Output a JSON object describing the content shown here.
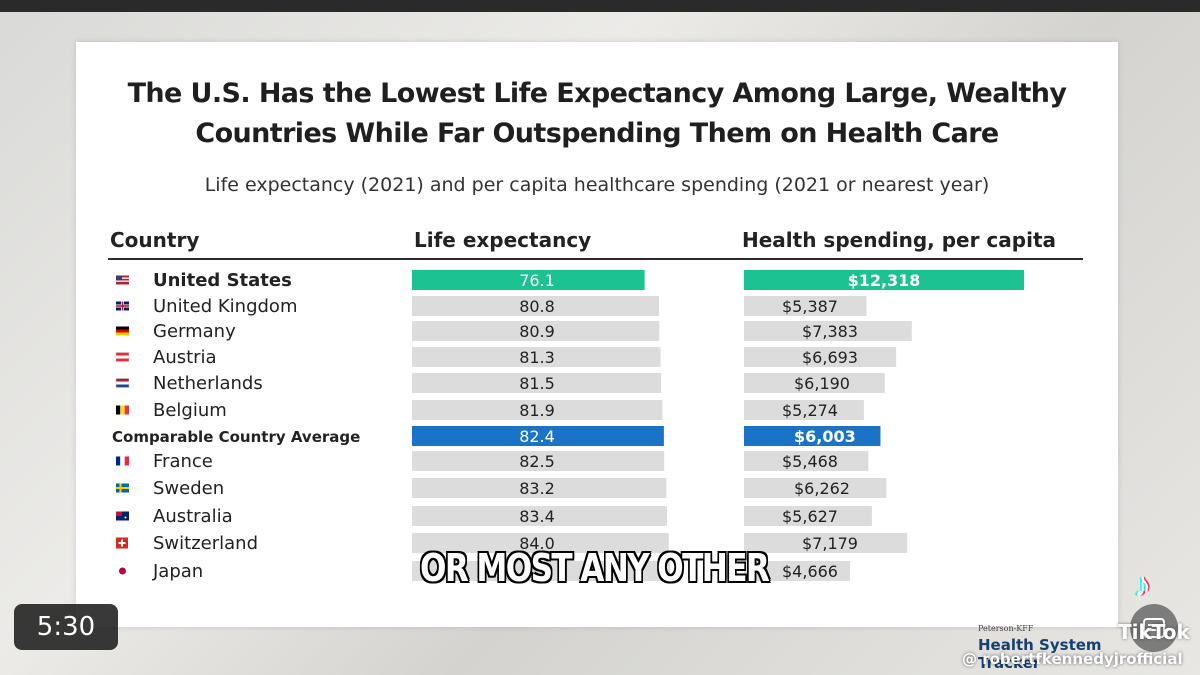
{
  "title_line1": "The U.S. Has the Lowest Life Expectancy Among Large, Wealthy",
  "title_line2": "Countries While Far Outspending Them on Health Care",
  "subtitle": "Life expectancy (2021) and per capita healthcare spending (2021 or nearest year)",
  "columns": {
    "country": "Country",
    "life": "Life expectancy",
    "spending": "Health spending, per capita"
  },
  "colors": {
    "us": "#1dc292",
    "average": "#1a73c6",
    "other": "#dcdcdc"
  },
  "chart_data": {
    "type": "bar",
    "categories": [
      "United States",
      "United Kingdom",
      "Germany",
      "Austria",
      "Netherlands",
      "Belgium",
      "Comparable Country Average",
      "France",
      "Sweden",
      "Australia",
      "Switzerland",
      "Japan"
    ],
    "flags": [
      "flag-us-icon",
      "flag-uk-icon",
      "flag-germany-icon",
      "flag-austria-icon",
      "flag-netherlands-icon",
      "flag-belgium-icon",
      "",
      "flag-france-icon",
      "flag-sweden-icon",
      "flag-australia-icon",
      "flag-switzerland-icon",
      "flag-japan-icon"
    ],
    "series": [
      {
        "name": "Life expectancy",
        "values": [
          76.1,
          80.8,
          80.9,
          81.3,
          81.5,
          81.9,
          82.4,
          82.5,
          83.2,
          83.4,
          84.0,
          84.5
        ],
        "labels": [
          "76.1",
          "80.8",
          "80.9",
          "81.3",
          "81.5",
          "81.9",
          "82.4",
          "82.5",
          "83.2",
          "83.4",
          "84.0",
          ""
        ]
      },
      {
        "name": "Health spending, per capita",
        "values": [
          12318,
          5387,
          7383,
          6693,
          6190,
          5274,
          6003,
          5468,
          6262,
          5627,
          7179,
          4666
        ],
        "labels": [
          "$12,318",
          "$5,387",
          "$7,383",
          "$6,693",
          "$6,190",
          "$5,274",
          "$6,003",
          "$5,468",
          "$6,262",
          "$5,627",
          "$7,179",
          "$4,666"
        ]
      }
    ]
  },
  "caption": "OR MOST ANY OTHER",
  "video_time": "5:30",
  "brand_small": "Peterson-KFF",
  "brand_main": "Health System Tracker",
  "watermark": "TikTok",
  "handle": "@ robertfkennedyjrofficial"
}
